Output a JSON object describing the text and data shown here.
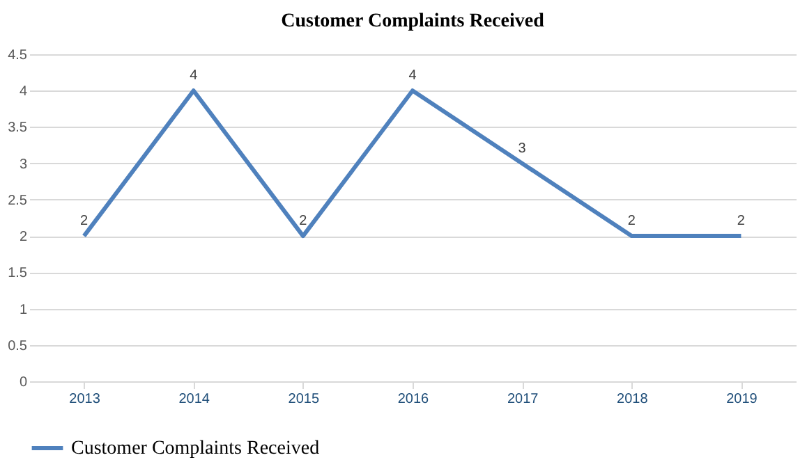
{
  "chart_data": {
    "type": "line",
    "title": "Customer Complaints Received",
    "categories": [
      "2013",
      "2014",
      "2015",
      "2016",
      "2017",
      "2018",
      "2019"
    ],
    "series": [
      {
        "name": "Customer Complaints Received",
        "color": "#4f81bd",
        "values": [
          2,
          4,
          2,
          4,
          3,
          2,
          2
        ]
      }
    ],
    "ylim": [
      0,
      4.5
    ],
    "yticks": [
      0,
      0.5,
      1,
      1.5,
      2,
      2.5,
      3,
      3.5,
      4,
      4.5
    ],
    "grid": "y",
    "legend": "bottom",
    "marker": "none",
    "line_style": "solid",
    "data_labels": true
  }
}
